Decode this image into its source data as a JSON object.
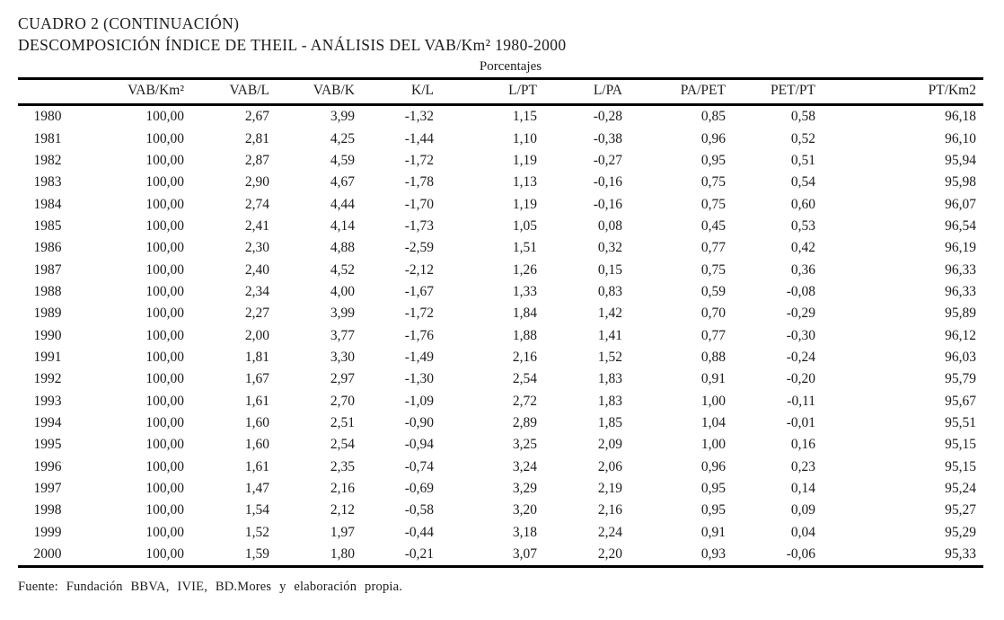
{
  "header": {
    "title_line1": "CUADRO 2 (CONTINUACIÓN)",
    "title_line2": "DESCOMPOSICIÓN ÍNDICE DE THEIL - ANÁLISIS DEL VAB/Km² 1980-2000",
    "subtitle": "Porcentajes"
  },
  "table": {
    "columns": [
      "",
      "VAB/Km²",
      "VAB/L",
      "VAB/K",
      "K/L",
      "L/PT",
      "L/PA",
      "PA/PET",
      "PET/PT",
      "PT/Km2"
    ],
    "rows": [
      {
        "year": "1980",
        "values": [
          "100,00",
          "2,67",
          "3,99",
          "-1,32",
          "1,15",
          "-0,28",
          "0,85",
          "0,58",
          "96,18"
        ]
      },
      {
        "year": "1981",
        "values": [
          "100,00",
          "2,81",
          "4,25",
          "-1,44",
          "1,10",
          "-0,38",
          "0,96",
          "0,52",
          "96,10"
        ]
      },
      {
        "year": "1982",
        "values": [
          "100,00",
          "2,87",
          "4,59",
          "-1,72",
          "1,19",
          "-0,27",
          "0,95",
          "0,51",
          "95,94"
        ]
      },
      {
        "year": "1983",
        "values": [
          "100,00",
          "2,90",
          "4,67",
          "-1,78",
          "1,13",
          "-0,16",
          "0,75",
          "0,54",
          "95,98"
        ]
      },
      {
        "year": "1984",
        "values": [
          "100,00",
          "2,74",
          "4,44",
          "-1,70",
          "1,19",
          "-0,16",
          "0,75",
          "0,60",
          "96,07"
        ]
      },
      {
        "year": "1985",
        "values": [
          "100,00",
          "2,41",
          "4,14",
          "-1,73",
          "1,05",
          "0,08",
          "0,45",
          "0,53",
          "96,54"
        ]
      },
      {
        "year": "1986",
        "values": [
          "100,00",
          "2,30",
          "4,88",
          "-2,59",
          "1,51",
          "0,32",
          "0,77",
          "0,42",
          "96,19"
        ]
      },
      {
        "year": "1987",
        "values": [
          "100,00",
          "2,40",
          "4,52",
          "-2,12",
          "1,26",
          "0,15",
          "0,75",
          "0,36",
          "96,33"
        ]
      },
      {
        "year": "1988",
        "values": [
          "100,00",
          "2,34",
          "4,00",
          "-1,67",
          "1,33",
          "0,83",
          "0,59",
          "-0,08",
          "96,33"
        ]
      },
      {
        "year": "1989",
        "values": [
          "100,00",
          "2,27",
          "3,99",
          "-1,72",
          "1,84",
          "1,42",
          "0,70",
          "-0,29",
          "95,89"
        ]
      },
      {
        "year": "1990",
        "values": [
          "100,00",
          "2,00",
          "3,77",
          "-1,76",
          "1,88",
          "1,41",
          "0,77",
          "-0,30",
          "96,12"
        ]
      },
      {
        "year": "1991",
        "values": [
          "100,00",
          "1,81",
          "3,30",
          "-1,49",
          "2,16",
          "1,52",
          "0,88",
          "-0,24",
          "96,03"
        ]
      },
      {
        "year": "1992",
        "values": [
          "100,00",
          "1,67",
          "2,97",
          "-1,30",
          "2,54",
          "1,83",
          "0,91",
          "-0,20",
          "95,79"
        ]
      },
      {
        "year": "1993",
        "values": [
          "100,00",
          "1,61",
          "2,70",
          "-1,09",
          "2,72",
          "1,83",
          "1,00",
          "-0,11",
          "95,67"
        ]
      },
      {
        "year": "1994",
        "values": [
          "100,00",
          "1,60",
          "2,51",
          "-0,90",
          "2,89",
          "1,85",
          "1,04",
          "-0,01",
          "95,51"
        ]
      },
      {
        "year": "1995",
        "values": [
          "100,00",
          "1,60",
          "2,54",
          "-0,94",
          "3,25",
          "2,09",
          "1,00",
          "0,16",
          "95,15"
        ]
      },
      {
        "year": "1996",
        "values": [
          "100,00",
          "1,61",
          "2,35",
          "-0,74",
          "3,24",
          "2,06",
          "0,96",
          "0,23",
          "95,15"
        ]
      },
      {
        "year": "1997",
        "values": [
          "100,00",
          "1,47",
          "2,16",
          "-0,69",
          "3,29",
          "2,19",
          "0,95",
          "0,14",
          "95,24"
        ]
      },
      {
        "year": "1998",
        "values": [
          "100,00",
          "1,54",
          "2,12",
          "-0,58",
          "3,20",
          "2,16",
          "0,95",
          "0,09",
          "95,27"
        ]
      },
      {
        "year": "1999",
        "values": [
          "100,00",
          "1,52",
          "1,97",
          "-0,44",
          "3,18",
          "2,24",
          "0,91",
          "0,04",
          "95,29"
        ]
      },
      {
        "year": "2000",
        "values": [
          "100,00",
          "1,59",
          "1,80",
          "-0,21",
          "3,07",
          "2,20",
          "0,93",
          "-0,06",
          "95,33"
        ]
      }
    ]
  },
  "footer": {
    "source": "Fuente: Fundación BBVA, IVIE, BD.Mores y elaboración propia."
  },
  "colors": {
    "text": "#1c1c1c",
    "rule": "#000000",
    "background": "#ffffff"
  }
}
